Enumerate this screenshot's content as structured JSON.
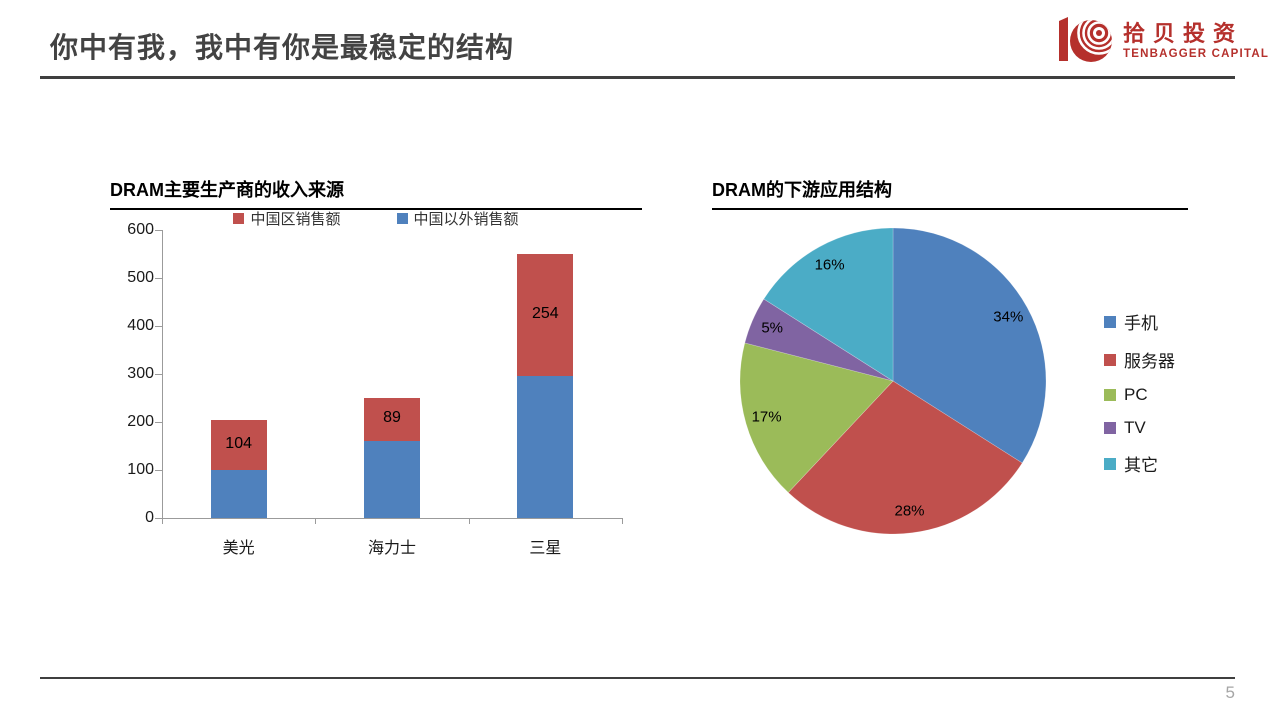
{
  "slide": {
    "title": "你中有我，我中有你是最稳定的结构",
    "page_number": "5"
  },
  "logo": {
    "name_cn": "拾贝投资",
    "name_en": "TENBAGGER CAPITAL",
    "color": "#B5302C"
  },
  "colors": {
    "rule": "#3F3F3F",
    "axis": "#9B9B9B",
    "bar_blue": "#4F81BD",
    "bar_red": "#C0504D"
  },
  "chart_data": [
    {
      "type": "bar",
      "stacked": true,
      "title": "DRAM主要生产商的收入来源",
      "categories": [
        "美光",
        "海力士",
        "三星"
      ],
      "series": [
        {
          "name": "中国以外销售额",
          "color": "#4F81BD",
          "values": [
            100,
            161,
            296
          ],
          "show_labels": false
        },
        {
          "name": "中国区销售额",
          "color": "#C0504D",
          "values": [
            104,
            89,
            254
          ],
          "show_labels": true
        }
      ],
      "legend": [
        {
          "label": "中国区销售额",
          "color": "#C0504D"
        },
        {
          "label": "中国以外销售额",
          "color": "#4F81BD"
        }
      ],
      "legend_position": "top",
      "xlabel": "",
      "ylabel": "",
      "ylim": [
        0,
        600
      ],
      "y_step": 100,
      "y_ticks": [
        0,
        100,
        200,
        300,
        400,
        500,
        600
      ],
      "grid": false
    },
    {
      "type": "pie",
      "title": "DRAM的下游应用结构",
      "slices": [
        {
          "label": "手机",
          "value": 34,
          "color": "#4F81BD",
          "data_label": "34%"
        },
        {
          "label": "服务器",
          "value": 28,
          "color": "#C0504D",
          "data_label": "28%"
        },
        {
          "label": "PC",
          "value": 17,
          "color": "#9BBB59",
          "data_label": "17%"
        },
        {
          "label": "TV",
          "value": 5,
          "color": "#8064A2",
          "data_label": "5%"
        },
        {
          "label": "其它",
          "value": 16,
          "color": "#4BACC6",
          "data_label": "16%"
        }
      ],
      "start_angle_deg": 0,
      "direction": "clockwise",
      "legend_position": "right",
      "data_label_color": "#000000"
    }
  ]
}
